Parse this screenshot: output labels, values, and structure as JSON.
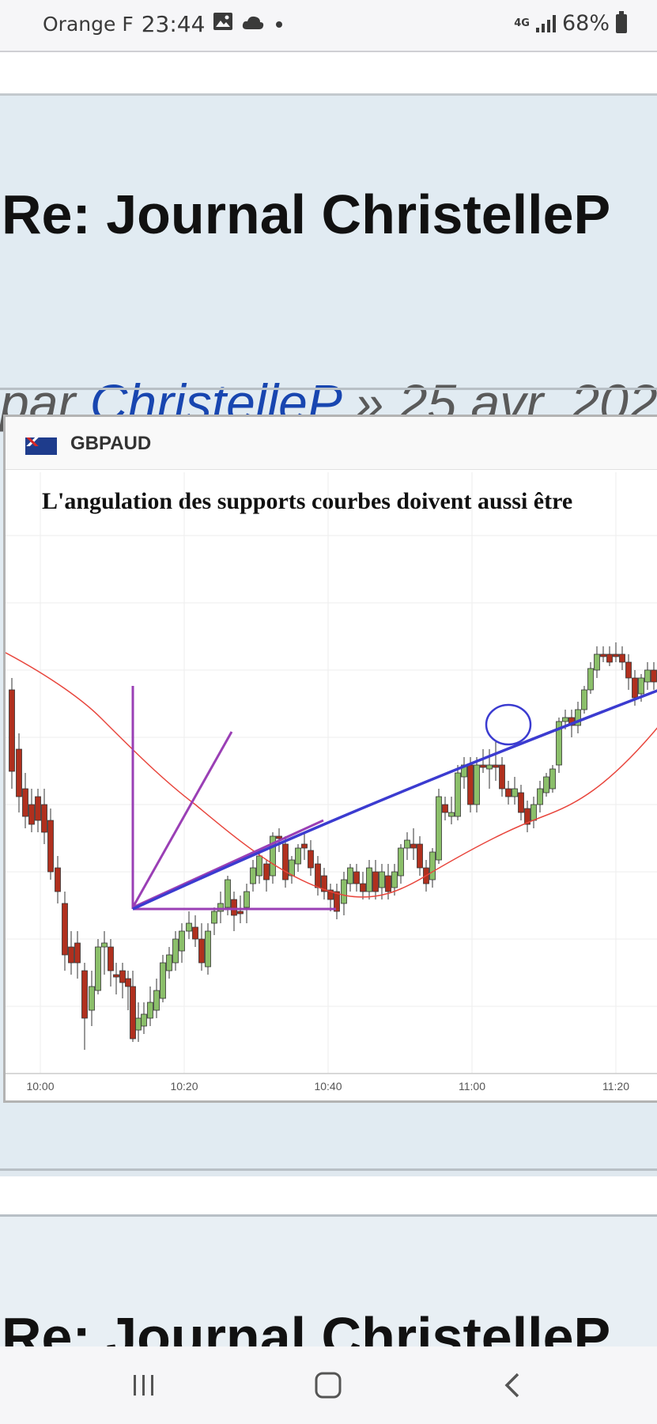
{
  "status_bar": {
    "carrier": "Orange F",
    "time": "23:44",
    "network": "4G",
    "battery": "68%",
    "icons": [
      "image-icon",
      "cloud-icon",
      "dot-icon",
      "signal-icon",
      "battery-icon"
    ]
  },
  "post": {
    "title": "Re: Journal ChristelleP",
    "by_prefix": "par",
    "author": "ChristelleP",
    "date_fragment": "» 25 avr. 202"
  },
  "chart": {
    "symbol": "GBPAUD",
    "flag": "gb-au-flag",
    "annotation_title": "L'angulation des supports courbes doivent aussi être",
    "x_ticks": [
      "10:00",
      "10:20",
      "10:40",
      "11:00",
      "11:20"
    ]
  },
  "next_post": {
    "title": "Re: Journal ChristelleP"
  },
  "nav": {
    "icons": [
      "recent-apps-icon",
      "home-icon",
      "back-icon"
    ]
  },
  "colors": {
    "panel_bg": "#e1ebf2",
    "author_link": "#1846b0",
    "up_candle": "#8bbf6a",
    "down_candle": "#b0301e",
    "moving_average": "#e8453c",
    "trendline_blue": "#3b3bd0",
    "trendline_purple": "#9a3fb5"
  }
}
